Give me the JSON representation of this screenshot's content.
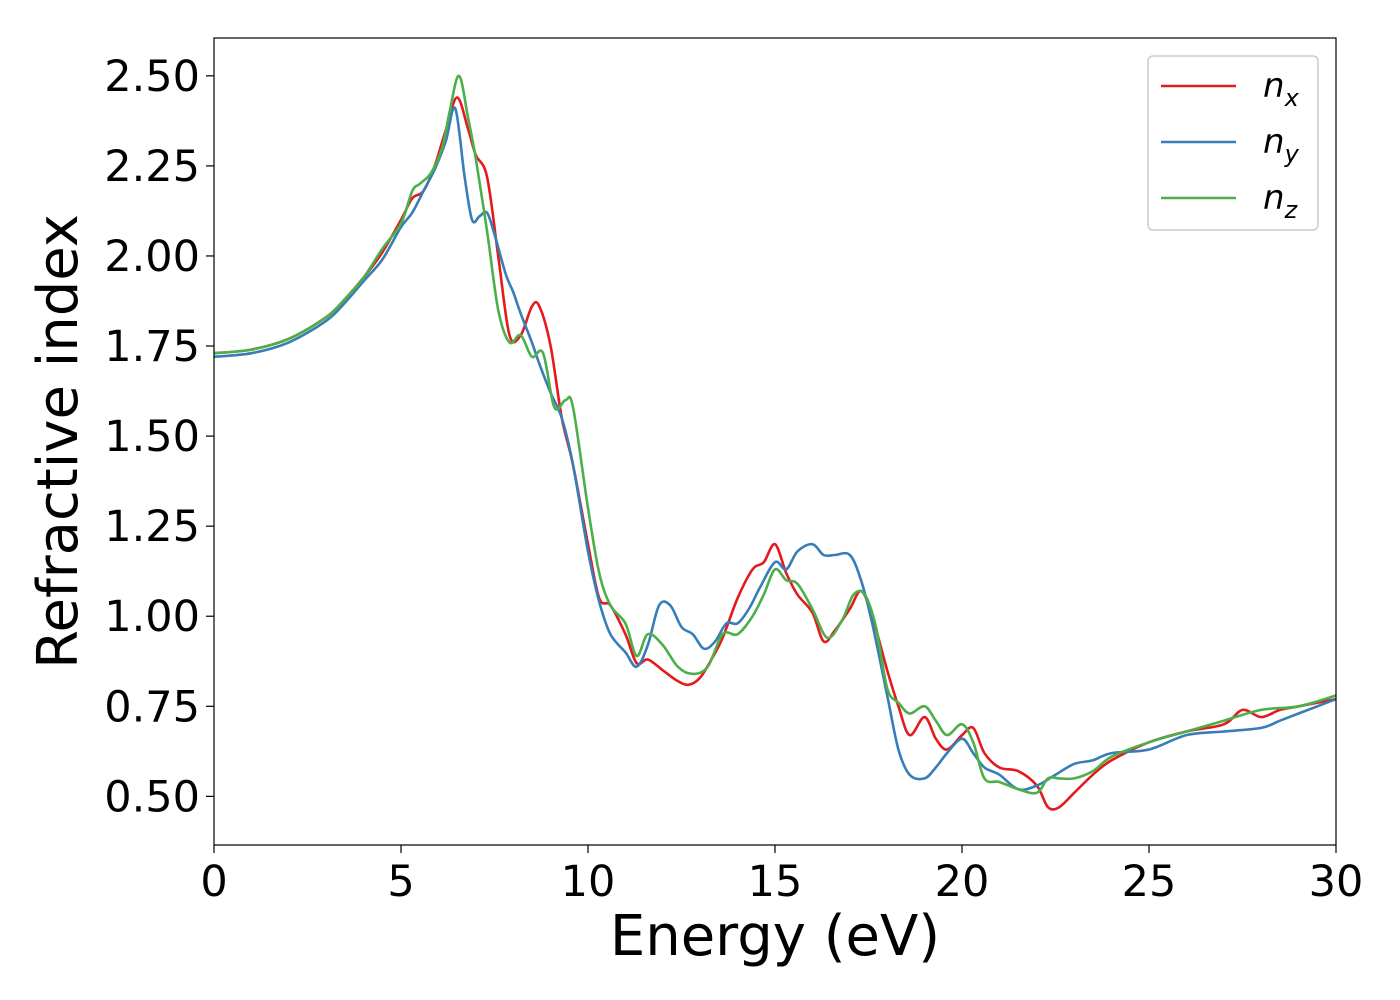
{
  "chart_data": {
    "type": "line",
    "title": "",
    "xlabel": "Energy (eV)",
    "ylabel": "Refractive index",
    "xlim": [
      0,
      30
    ],
    "ylim": [
      0.365,
      2.605
    ],
    "xticks": [
      0,
      5,
      10,
      15,
      20,
      25,
      30
    ],
    "yticks": [
      0.5,
      0.75,
      1.0,
      1.25,
      1.5,
      1.75,
      2.0,
      2.25,
      2.5
    ],
    "grid": false,
    "legend_position": "top-right",
    "series": [
      {
        "name": "n_x",
        "label_base": "n",
        "label_sub": "x",
        "color": "#e41a1c",
        "x": [
          0,
          1,
          2,
          3,
          3.5,
          4,
          4.5,
          5,
          5.3,
          5.6,
          5.9,
          6.2,
          6.5,
          6.8,
          7.0,
          7.3,
          7.6,
          7.9,
          8.2,
          8.5,
          8.7,
          9.0,
          9.3,
          9.6,
          10.0,
          10.3,
          10.6,
          11.0,
          11.3,
          11.6,
          12.0,
          12.4,
          12.7,
          13.0,
          13.3,
          13.6,
          14.0,
          14.4,
          14.7,
          15.0,
          15.3,
          15.6,
          16.0,
          16.3,
          16.6,
          17.0,
          17.3,
          17.6,
          18.0,
          18.3,
          18.6,
          19.0,
          19.3,
          19.6,
          20.0,
          20.3,
          20.6,
          21.0,
          21.5,
          22.0,
          22.3,
          22.6,
          23.0,
          23.5,
          24.0,
          25.0,
          26.0,
          27.0,
          27.5,
          28.0,
          28.5,
          29.0,
          30.0
        ],
        "y": [
          1.73,
          1.74,
          1.77,
          1.83,
          1.88,
          1.94,
          2.01,
          2.1,
          2.16,
          2.18,
          2.25,
          2.35,
          2.44,
          2.35,
          2.28,
          2.22,
          2.0,
          1.78,
          1.78,
          1.86,
          1.86,
          1.75,
          1.55,
          1.42,
          1.2,
          1.05,
          1.03,
          0.95,
          0.87,
          0.88,
          0.85,
          0.82,
          0.81,
          0.83,
          0.88,
          0.94,
          1.05,
          1.13,
          1.15,
          1.2,
          1.12,
          1.06,
          1.01,
          0.93,
          0.96,
          1.02,
          1.07,
          1.0,
          0.85,
          0.75,
          0.67,
          0.72,
          0.66,
          0.63,
          0.67,
          0.69,
          0.62,
          0.58,
          0.57,
          0.53,
          0.47,
          0.47,
          0.51,
          0.56,
          0.6,
          0.65,
          0.68,
          0.7,
          0.74,
          0.72,
          0.74,
          0.75,
          0.77
        ]
      },
      {
        "name": "n_y",
        "label_base": "n",
        "label_sub": "y",
        "color": "#377eb8",
        "x": [
          0,
          1,
          2,
          3,
          3.5,
          4,
          4.5,
          5,
          5.3,
          5.6,
          5.9,
          6.2,
          6.45,
          6.7,
          6.9,
          7.1,
          7.3,
          7.5,
          7.8,
          8.0,
          8.2,
          8.5,
          8.7,
          9.0,
          9.3,
          9.6,
          10.0,
          10.3,
          10.6,
          11.0,
          11.3,
          11.6,
          11.9,
          12.2,
          12.5,
          12.8,
          13.1,
          13.4,
          13.7,
          14.0,
          14.3,
          14.6,
          15.0,
          15.3,
          15.6,
          16.0,
          16.3,
          16.6,
          17.0,
          17.3,
          17.6,
          18.0,
          18.3,
          18.6,
          19.0,
          19.3,
          19.6,
          20.0,
          20.3,
          20.6,
          21.0,
          21.5,
          22.0,
          22.5,
          23.0,
          23.5,
          24.0,
          25.0,
          26.0,
          27.0,
          28.0,
          28.5,
          29.0,
          30.0
        ],
        "y": [
          1.72,
          1.73,
          1.76,
          1.82,
          1.87,
          1.93,
          1.99,
          2.08,
          2.12,
          2.18,
          2.24,
          2.32,
          2.41,
          2.22,
          2.1,
          2.11,
          2.12,
          2.06,
          1.95,
          1.9,
          1.84,
          1.76,
          1.7,
          1.62,
          1.55,
          1.42,
          1.18,
          1.04,
          0.95,
          0.9,
          0.86,
          0.92,
          1.03,
          1.03,
          0.97,
          0.95,
          0.91,
          0.93,
          0.98,
          0.98,
          1.02,
          1.08,
          1.15,
          1.13,
          1.18,
          1.2,
          1.17,
          1.17,
          1.17,
          1.1,
          0.98,
          0.78,
          0.63,
          0.56,
          0.55,
          0.58,
          0.62,
          0.66,
          0.62,
          0.58,
          0.56,
          0.52,
          0.53,
          0.56,
          0.59,
          0.6,
          0.62,
          0.63,
          0.67,
          0.68,
          0.69,
          0.71,
          0.73,
          0.77
        ]
      },
      {
        "name": "n_z",
        "label_base": "n",
        "label_sub": "z",
        "color": "#4daf4a",
        "x": [
          0,
          1,
          2,
          3,
          3.5,
          4,
          4.5,
          5,
          5.3,
          5.5,
          5.8,
          6.1,
          6.3,
          6.55,
          6.8,
          7.0,
          7.3,
          7.6,
          7.9,
          8.2,
          8.5,
          8.8,
          9.1,
          9.4,
          9.6,
          10.0,
          10.3,
          10.6,
          11.0,
          11.3,
          11.6,
          12.0,
          12.4,
          12.8,
          13.2,
          13.6,
          14.0,
          14.4,
          14.7,
          15.0,
          15.3,
          15.6,
          16.0,
          16.4,
          16.8,
          17.1,
          17.4,
          17.7,
          18.0,
          18.3,
          18.6,
          19.0,
          19.3,
          19.6,
          20.0,
          20.3,
          20.6,
          21.0,
          21.5,
          22.0,
          22.3,
          22.6,
          23.0,
          23.5,
          24.0,
          25.0,
          26.0,
          27.0,
          28.0,
          29.0,
          30.0
        ],
        "y": [
          1.73,
          1.74,
          1.77,
          1.83,
          1.88,
          1.94,
          2.02,
          2.09,
          2.18,
          2.2,
          2.23,
          2.3,
          2.4,
          2.5,
          2.38,
          2.27,
          2.07,
          1.85,
          1.76,
          1.78,
          1.72,
          1.73,
          1.58,
          1.6,
          1.58,
          1.3,
          1.12,
          1.03,
          0.98,
          0.89,
          0.95,
          0.92,
          0.86,
          0.84,
          0.86,
          0.95,
          0.95,
          1.0,
          1.06,
          1.13,
          1.1,
          1.09,
          1.02,
          0.94,
          0.99,
          1.06,
          1.06,
          0.97,
          0.8,
          0.76,
          0.73,
          0.75,
          0.71,
          0.67,
          0.7,
          0.65,
          0.55,
          0.54,
          0.52,
          0.51,
          0.55,
          0.55,
          0.55,
          0.57,
          0.61,
          0.65,
          0.68,
          0.71,
          0.74,
          0.75,
          0.78
        ]
      }
    ]
  }
}
